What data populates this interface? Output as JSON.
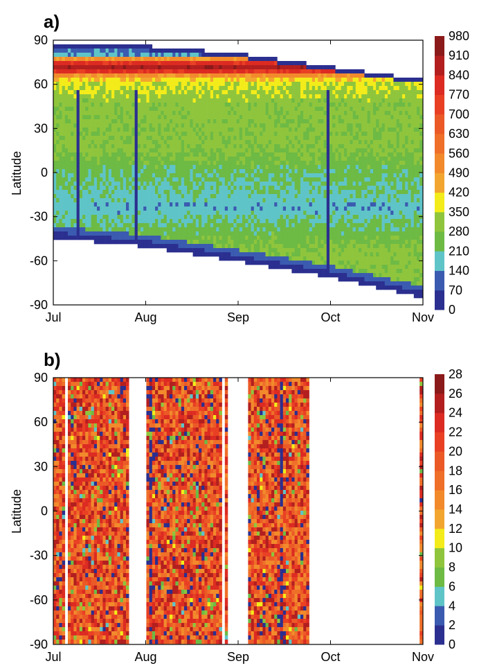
{
  "chart_data": [
    {
      "type": "heatmap",
      "panel_label": "a)",
      "title": "",
      "xlabel": "",
      "ylabel": "Latitude",
      "x_tick_labels": [
        "Jul",
        "Aug",
        "Sep",
        "Oct",
        "Nov"
      ],
      "y_ticks": [
        90,
        60,
        30,
        0,
        -30,
        -60,
        -90
      ],
      "ylim": [
        -90,
        90
      ],
      "colorbar": {
        "ticks": [
          980,
          910,
          840,
          770,
          700,
          630,
          560,
          490,
          420,
          350,
          280,
          210,
          140,
          70,
          0
        ],
        "range": [
          0,
          980
        ]
      },
      "coverage": {
        "north_edge_lat": {
          "Jul": 86,
          "Aug": 86,
          "Sep": 81,
          "Oct": 72,
          "Nov": 63
        },
        "south_edge_lat": {
          "Jul": -46,
          "Aug": -52,
          "Sep": -62,
          "Oct": -73,
          "Nov": -87
        }
      },
      "latitude_band_values": [
        {
          "lat": 85,
          "value": 80
        },
        {
          "lat": 80,
          "value": 150
        },
        {
          "lat": 75,
          "value": 780
        },
        {
          "lat": 70,
          "value": 920
        },
        {
          "lat": 65,
          "value": 450
        },
        {
          "lat": 60,
          "value": 360
        },
        {
          "lat": 45,
          "value": 300
        },
        {
          "lat": 30,
          "value": 300
        },
        {
          "lat": 15,
          "value": 290
        },
        {
          "lat": 5,
          "value": 250
        },
        {
          "lat": -5,
          "value": 220
        },
        {
          "lat": -15,
          "value": 200
        },
        {
          "lat": -25,
          "value": 160
        },
        {
          "lat": -35,
          "value": 210
        },
        {
          "lat": -45,
          "value": 250
        },
        {
          "lat": -60,
          "value": 310
        },
        {
          "lat": -75,
          "value": 290
        }
      ],
      "cmap": [
        "#2b2f8f",
        "#3b5bb0",
        "#5fc4c8",
        "#6dba45",
        "#8fc53c",
        "#f3ec1a",
        "#f2a630",
        "#f28a2c",
        "#ef6f29",
        "#eb5a26",
        "#e94024",
        "#dc2b22",
        "#b31f1f",
        "#8b1a1a"
      ]
    },
    {
      "type": "heatmap",
      "panel_label": "b)",
      "title": "",
      "xlabel": "",
      "ylabel": "Latitude",
      "x_tick_labels": [
        "Jul",
        "Aug",
        "Sep",
        "Oct",
        "Nov"
      ],
      "y_ticks": [
        90,
        60,
        30,
        0,
        -30,
        -60,
        -90
      ],
      "ylim": [
        -90,
        90
      ],
      "colorbar": {
        "ticks": [
          28,
          26,
          24,
          22,
          20,
          18,
          16,
          14,
          12,
          10,
          8,
          6,
          4,
          2,
          0
        ],
        "range": [
          0,
          28
        ]
      },
      "data_gaps_months": [
        {
          "from": 0.83,
          "to": 1.0
        },
        {
          "from": 1.88,
          "to": 2.1
        },
        {
          "from": 2.76,
          "to": 3.96
        }
      ],
      "typical_value_range": [
        14,
        22
      ],
      "cmap": [
        "#2b2f8f",
        "#3b5bb0",
        "#5fc4c8",
        "#6dba45",
        "#8fc53c",
        "#f3ec1a",
        "#f2a630",
        "#f28a2c",
        "#ef6f29",
        "#eb5a26",
        "#e94024",
        "#dc2b22",
        "#b31f1f",
        "#8b1a1a"
      ]
    }
  ]
}
